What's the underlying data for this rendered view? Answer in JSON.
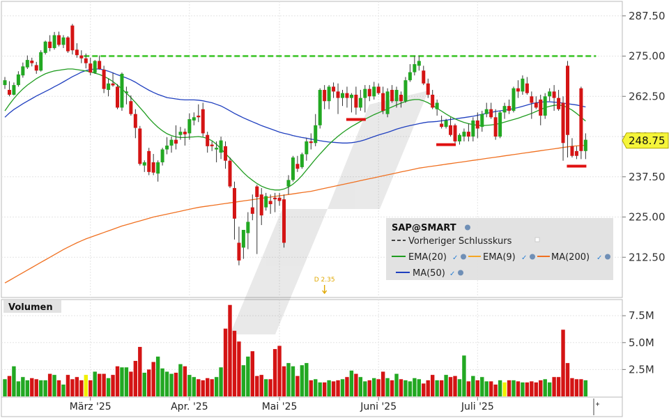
{
  "chart_data": {
    "type": "candlestick",
    "price_axis": {
      "ylim": [
        200,
        292
      ],
      "ticks": [
        "287.50",
        "275.00",
        "262.50",
        "250.00",
        "237.50",
        "225.00",
        "212.50"
      ],
      "tick_values": [
        287.5,
        275,
        262.5,
        250,
        237.5,
        225,
        212.5
      ]
    },
    "volume_axis": {
      "title": "Volumen",
      "ylim": [
        0,
        9
      ],
      "ticks": [
        "7.5M",
        "5.0M",
        "2.5M"
      ],
      "tick_values": [
        7.5,
        5.0,
        2.5
      ]
    },
    "x_labels": [
      {
        "label": "März '25",
        "index": 19
      },
      {
        "label": "Apr. '25",
        "index": 41
      },
      {
        "label": "Mai '25",
        "index": 61
      },
      {
        "label": "Juni '25",
        "index": 83
      },
      {
        "label": "Juli '25",
        "index": 105
      }
    ],
    "last_price": "248.75",
    "last_price_color": "#f5f53a",
    "previous_close": 275.0,
    "dividend_marker": {
      "label": "D 2.35",
      "index": 71
    },
    "legend": {
      "symbol": "SAP@SMART",
      "items": [
        {
          "name": "Vorheriger Schlusskurs",
          "color": "#444444",
          "style": "dashed"
        },
        {
          "name": "EMA(20)",
          "color": "#1f9c1f"
        },
        {
          "name": "EMA(9)",
          "color": "#f5a623"
        },
        {
          "name": "MA(200)",
          "color": "#f07020"
        },
        {
          "name": "MA(50)",
          "color": "#1f3fbf"
        }
      ]
    },
    "colors": {
      "up": "#22a822",
      "down": "#d41414",
      "neutral": "#f0f000",
      "ma50": "#1f3fbf",
      "ema20": "#1f9c1f",
      "ma200": "#f07020",
      "prev_close": "#55cc44",
      "support": "#e01010"
    },
    "support_marks": [
      {
        "index": 78,
        "value": 255.3
      },
      {
        "index": 98,
        "value": 247.5
      },
      {
        "index": 127,
        "value": 240.8
      }
    ],
    "candles": [
      [
        266.0,
        268.5,
        264.8,
        267.5
      ],
      [
        264.5,
        267.2,
        262.5,
        263.0
      ],
      [
        263.0,
        266.8,
        262.8,
        266.0
      ],
      [
        266.0,
        270.3,
        265.5,
        269.3
      ],
      [
        269.0,
        273.0,
        268.3,
        271.8
      ],
      [
        271.5,
        275.2,
        271.0,
        273.8
      ],
      [
        273.6,
        274.5,
        271.8,
        272.8
      ],
      [
        272.2,
        273.2,
        269.5,
        270.5
      ],
      [
        270.5,
        276.8,
        270.2,
        276.2
      ],
      [
        276.0,
        279.8,
        275.5,
        279.5
      ],
      [
        279.5,
        281.5,
        276.5,
        277.5
      ],
      [
        277.5,
        282.5,
        277.0,
        281.5
      ],
      [
        281.5,
        282.6,
        278.0,
        278.5
      ],
      [
        278.5,
        281.5,
        277.5,
        280.8
      ],
      [
        280.8,
        281.2,
        276.0,
        276.5
      ],
      [
        284.5,
        285.0,
        275.5,
        276.8
      ],
      [
        277.0,
        279.0,
        274.5,
        275.3
      ],
      [
        275.2,
        276.8,
        272.8,
        274.3
      ],
      [
        274.3,
        275.8,
        271.2,
        272.8
      ],
      [
        272.7,
        274.5,
        269.0,
        269.9
      ],
      [
        269.8,
        273.8,
        269.5,
        273.5
      ],
      [
        273.5,
        275.2,
        270.8,
        271.0
      ],
      [
        270.8,
        272.0,
        263.5,
        264.8
      ],
      [
        264.5,
        268.0,
        262.5,
        266.5
      ],
      [
        266.5,
        269.8,
        265.5,
        265.9
      ],
      [
        265.5,
        266.3,
        258.5,
        259.0
      ],
      [
        259.0,
        269.9,
        258.0,
        269.5
      ],
      [
        263.5,
        265.5,
        260.0,
        264.0
      ],
      [
        261.0,
        262.8,
        256.5,
        257.0
      ],
      [
        257.0,
        258.5,
        249.5,
        252.7
      ],
      [
        252.5,
        253.3,
        241.0,
        241.5
      ],
      [
        241.0,
        242.6,
        239.0,
        242.0
      ],
      [
        245.5,
        246.5,
        238.0,
        239.0
      ],
      [
        242.0,
        244.6,
        238.0,
        238.8
      ],
      [
        238.5,
        242.6,
        236.0,
        242.0
      ],
      [
        242.0,
        246.5,
        241.0,
        246.0
      ],
      [
        246.0,
        249.8,
        244.5,
        247.2
      ],
      [
        247.2,
        250.0,
        245.0,
        249.0
      ],
      [
        249.0,
        253.5,
        246.0,
        247.8
      ],
      [
        250.5,
        253.0,
        249.0,
        251.5
      ],
      [
        251.5,
        252.5,
        247.2,
        250.7
      ],
      [
        251.0,
        257.2,
        249.0,
        255.4
      ],
      [
        255.0,
        257.5,
        253.5,
        256.0
      ],
      [
        256.5,
        260.0,
        254.5,
        256.0
      ],
      [
        258.5,
        260.5,
        250.0,
        251.0
      ],
      [
        250.5,
        251.5,
        245.0,
        247.0
      ],
      [
        247.5,
        248.5,
        245.5,
        247.0
      ],
      [
        246.0,
        248.5,
        242.0,
        246.5
      ],
      [
        245.0,
        250.0,
        243.0,
        248.8
      ],
      [
        247.0,
        248.5,
        240.0,
        242.5
      ],
      [
        242.5,
        243.5,
        234.0,
        234.5
      ],
      [
        234.0,
        236.0,
        218.0,
        224.5
      ],
      [
        217.0,
        222.0,
        210.0,
        211.5
      ],
      [
        215.5,
        221.0,
        212.0,
        221.0
      ],
      [
        220.0,
        226.5,
        215.0,
        223.5
      ],
      [
        228.0,
        232.0,
        224.0,
        226.0
      ],
      [
        234.5,
        235.0,
        213.5,
        231.2
      ],
      [
        232.0,
        234.0,
        222.5,
        225.5
      ],
      [
        228.0,
        232.5,
        227.0,
        231.5
      ],
      [
        230.0,
        232.0,
        226.0,
        229.0
      ],
      [
        231.0,
        232.5,
        226.5,
        230.5
      ],
      [
        231.0,
        232.5,
        228.5,
        230.0
      ],
      [
        230.5,
        232.0,
        215.5,
        217.0
      ],
      [
        234.5,
        238.0,
        232.0,
        236.5
      ],
      [
        236.5,
        244.0,
        236.0,
        243.5
      ],
      [
        241.5,
        244.0,
        239.0,
        240.0
      ],
      [
        240.5,
        245.0,
        240.0,
        244.5
      ],
      [
        244.5,
        249.5,
        242.5,
        248.5
      ],
      [
        248.5,
        251.0,
        246.0,
        248.0
      ],
      [
        248.0,
        257.0,
        247.0,
        253.5
      ],
      [
        253.5,
        265.0,
        252.5,
        264.5
      ],
      [
        264.5,
        266.0,
        258.5,
        261.0
      ],
      [
        261.0,
        266.0,
        258.5,
        265.5
      ],
      [
        265.5,
        266.8,
        262.0,
        264.0
      ],
      [
        264.0,
        266.5,
        257.0,
        262.0
      ],
      [
        262.0,
        264.5,
        259.5,
        263.5
      ],
      [
        263.5,
        265.5,
        259.0,
        262.0
      ],
      [
        262.0,
        263.5,
        257.5,
        263.0
      ],
      [
        263.0,
        265.5,
        256.8,
        259.0
      ],
      [
        259.0,
        264.5,
        258.0,
        262.0
      ],
      [
        262.0,
        266.0,
        257.5,
        264.8
      ],
      [
        264.8,
        266.0,
        261.0,
        262.5
      ],
      [
        262.5,
        267.0,
        261.5,
        265.5
      ],
      [
        265.5,
        266.5,
        263.0,
        263.5
      ],
      [
        263.5,
        265.5,
        257.0,
        258.0
      ],
      [
        257.0,
        265.0,
        256.0,
        264.0
      ],
      [
        264.5,
        266.0,
        260.5,
        261.0
      ],
      [
        261.0,
        265.5,
        259.0,
        264.5
      ],
      [
        263.0,
        264.0,
        259.0,
        261.0
      ],
      [
        261.0,
        268.5,
        260.5,
        267.5
      ],
      [
        267.5,
        272.5,
        267.0,
        270.0
      ],
      [
        270.0,
        275.0,
        269.0,
        272.5
      ],
      [
        272.0,
        275.0,
        270.5,
        273.5
      ],
      [
        270.5,
        272.0,
        266.0,
        266.5
      ],
      [
        266.5,
        268.0,
        262.0,
        263.0
      ],
      [
        263.0,
        264.5,
        258.5,
        259.0
      ],
      [
        258.5,
        261.5,
        256.5,
        260.5
      ],
      [
        254.0,
        256.5,
        252.5,
        253.0
      ],
      [
        253.0,
        255.5,
        252.5,
        255.0
      ],
      [
        253.5,
        256.0,
        250.0,
        250.5
      ],
      [
        253.5,
        254.0,
        248.0,
        248.5
      ],
      [
        248.5,
        251.0,
        247.5,
        250.5
      ],
      [
        250.0,
        252.5,
        248.5,
        251.5
      ],
      [
        251.5,
        254.0,
        248.5,
        250.0
      ],
      [
        250.0,
        256.0,
        248.5,
        255.0
      ],
      [
        255.0,
        257.5,
        249.5,
        252.5
      ],
      [
        253.0,
        258.0,
        251.5,
        257.0
      ],
      [
        257.0,
        260.5,
        256.0,
        258.5
      ],
      [
        258.5,
        260.5,
        255.5,
        256.0
      ],
      [
        256.0,
        258.5,
        249.0,
        250.0
      ],
      [
        250.0,
        258.0,
        249.5,
        257.5
      ],
      [
        257.5,
        260.5,
        255.5,
        259.5
      ],
      [
        259.5,
        261.5,
        257.0,
        258.0
      ],
      [
        258.0,
        265.5,
        257.5,
        265.0
      ],
      [
        265.0,
        267.5,
        262.0,
        264.0
      ],
      [
        264.0,
        269.0,
        263.0,
        268.0
      ],
      [
        266.5,
        268.5,
        263.0,
        263.5
      ],
      [
        262.5,
        264.0,
        255.5,
        260.5
      ],
      [
        260.5,
        262.5,
        258.5,
        259.0
      ],
      [
        261.5,
        263.0,
        253.5,
        256.5
      ],
      [
        256.5,
        263.5,
        255.5,
        262.5
      ],
      [
        262.5,
        265.0,
        261.0,
        264.0
      ],
      [
        264.0,
        266.0,
        258.0,
        262.0
      ],
      [
        262.0,
        264.5,
        258.0,
        258.5
      ],
      [
        260.5,
        262.5,
        242.5,
        248.0
      ],
      [
        272.0,
        273.5,
        243.5,
        250.5
      ],
      [
        247.0,
        249.5,
        243.5,
        244.0
      ],
      [
        245.5,
        247.0,
        243.0,
        244.0
      ],
      [
        265.0,
        265.5,
        243.0,
        245.5
      ],
      [
        245.5,
        251.0,
        243.0,
        249.0
      ]
    ],
    "volumes": [
      1.6,
      1.9,
      2.8,
      1.4,
      1.8,
      1.5,
      1.7,
      1.6,
      1.5,
      1.5,
      2.1,
      2.0,
      1.5,
      1.1,
      2.0,
      1.6,
      1.8,
      1.5,
      2.0,
      1.5,
      2.3,
      2.1,
      2.1,
      1.7,
      2.0,
      2.8,
      2.7,
      2.7,
      2.3,
      3.3,
      4.6,
      2.2,
      2.5,
      3.2,
      3.7,
      2.6,
      2.3,
      2.1,
      2.2,
      3.0,
      2.8,
      2.0,
      1.8,
      1.6,
      1.5,
      1.7,
      1.6,
      1.8,
      2.7,
      6.3,
      8.5,
      6.1,
      5.1,
      2.9,
      3.7,
      4.2,
      1.9,
      2.0,
      1.6,
      1.6,
      4.4,
      4.7,
      2.8,
      3.1,
      2.8,
      1.9,
      2.9,
      3.1,
      1.5,
      1.6,
      1.3,
      1.3,
      1.5,
      1.4,
      1.5,
      1.6,
      1.8,
      2.4,
      2.1,
      1.8,
      1.4,
      1.5,
      1.7,
      1.6,
      2.3,
      1.7,
      1.5,
      2.1,
      1.6,
      1.5,
      1.4,
      1.7,
      1.6,
      1.2,
      1.5,
      2.0,
      1.5,
      1.5,
      2.0,
      1.8,
      1.9,
      1.6,
      3.8,
      1.4,
      1.9,
      1.5,
      1.8,
      1.4,
      1.4,
      1.1,
      1.5,
      1.3,
      1.5,
      1.5,
      1.4,
      1.3,
      1.3,
      1.4,
      1.3,
      1.5,
      1.6,
      1.3,
      1.8,
      1.8,
      6.2,
      3.1,
      1.7,
      1.6,
      1.6,
      1.5
    ],
    "volume_highlight_indices": [
      18,
      111
    ],
    "ma50": [
      256.0,
      257.3,
      258.4,
      259.3,
      260.2,
      261.0,
      261.8,
      262.6,
      263.3,
      264.0,
      264.7,
      265.5,
      266.2,
      267.0,
      267.8,
      268.6,
      269.3,
      270.0,
      270.5,
      270.8,
      271.0,
      271.0,
      270.7,
      270.3,
      269.8,
      269.2,
      268.7,
      268.2,
      267.6,
      266.9,
      266.0,
      265.2,
      264.4,
      263.7,
      263.1,
      262.6,
      262.1,
      261.9,
      261.7,
      261.5,
      261.4,
      261.4,
      261.4,
      261.3,
      261.1,
      260.8,
      260.5,
      260.0,
      259.5,
      258.8,
      258.0,
      257.2,
      256.5,
      255.8,
      255.2,
      254.6,
      254.0,
      253.4,
      252.9,
      252.4,
      251.9,
      251.4,
      251.0,
      250.7,
      250.3,
      250.0,
      249.7,
      249.5,
      249.2,
      249.0,
      248.7,
      248.5,
      248.3,
      248.2,
      248.1,
      248.0,
      248.0,
      248.1,
      248.3,
      248.6,
      249.0,
      249.5,
      250.0,
      250.5,
      250.9,
      251.3,
      251.8,
      252.3,
      252.7,
      253.1,
      253.4,
      253.7,
      254.0,
      254.3,
      254.5,
      254.6,
      254.7,
      254.9,
      255.1,
      255.3,
      255.5,
      255.7,
      255.9,
      256.1,
      256.3,
      256.6,
      256.9,
      257.2,
      257.5,
      257.8,
      258.0,
      258.2,
      258.4,
      258.7,
      259.0,
      259.4,
      259.8,
      260.2,
      260.5,
      260.7,
      260.8,
      260.8,
      260.7,
      260.6,
      260.4,
      260.2,
      260.0,
      259.8,
      259.5,
      259.2
    ],
    "ema20": [
      258.0,
      260.0,
      261.8,
      263.4,
      264.8,
      266.0,
      267.0,
      268.0,
      268.8,
      269.5,
      270.0,
      270.4,
      270.6,
      270.8,
      271.0,
      271.0,
      270.8,
      270.6,
      270.4,
      270.1,
      269.7,
      269.3,
      268.7,
      268.0,
      267.1,
      266.0,
      264.8,
      263.5,
      262.1,
      260.6,
      259.0,
      257.4,
      255.7,
      254.2,
      252.9,
      251.8,
      250.9,
      250.3,
      249.9,
      249.7,
      249.7,
      249.8,
      249.9,
      250.0,
      249.8,
      249.4,
      248.7,
      247.6,
      246.2,
      244.7,
      243.3,
      241.8,
      240.3,
      238.8,
      237.5,
      236.4,
      235.4,
      234.6,
      234.0,
      233.6,
      233.4,
      233.4,
      233.7,
      234.3,
      235.2,
      236.4,
      237.9,
      239.6,
      241.3,
      243.0,
      244.6,
      246.1,
      247.6,
      248.9,
      250.1,
      251.2,
      252.2,
      253.1,
      253.9,
      254.7,
      255.4,
      256.1,
      256.8,
      257.4,
      258.0,
      258.6,
      259.2,
      259.8,
      260.4,
      260.9,
      261.3,
      261.5,
      261.5,
      261.1,
      260.5,
      259.7,
      258.8,
      257.9,
      257.0,
      256.2,
      255.5,
      254.9,
      254.4,
      254.0,
      253.7,
      253.5,
      253.4,
      253.5,
      253.6,
      253.8,
      254.1,
      254.5,
      254.9,
      255.3,
      255.7,
      256.2,
      256.7,
      257.2,
      257.8,
      258.4,
      259.0,
      259.4,
      259.7,
      259.8,
      259.6,
      259.0,
      258.2,
      257.2,
      256.0,
      254.8
    ],
    "ma200": [
      204.5,
      205.3,
      206.1,
      206.9,
      207.7,
      208.5,
      209.3,
      210.1,
      210.9,
      211.7,
      212.5,
      213.3,
      214.1,
      214.9,
      215.6,
      216.3,
      217.0,
      217.6,
      218.2,
      218.7,
      219.2,
      219.7,
      220.2,
      220.7,
      221.2,
      221.7,
      222.2,
      222.6,
      223.0,
      223.4,
      223.8,
      224.2,
      224.6,
      225.0,
      225.3,
      225.6,
      225.9,
      226.2,
      226.5,
      226.8,
      227.1,
      227.4,
      227.7,
      228.0,
      228.2,
      228.4,
      228.6,
      228.8,
      229.0,
      229.2,
      229.4,
      229.6,
      229.8,
      230.0,
      230.2,
      230.4,
      230.6,
      230.8,
      231.0,
      231.2,
      231.4,
      231.6,
      231.8,
      232.0,
      232.2,
      232.4,
      232.6,
      232.8,
      233.0,
      233.3,
      233.6,
      233.9,
      234.2,
      234.5,
      234.8,
      235.1,
      235.4,
      235.7,
      236.0,
      236.3,
      236.6,
      236.9,
      237.2,
      237.5,
      237.8,
      238.1,
      238.4,
      238.7,
      239.0,
      239.3,
      239.6,
      239.9,
      240.2,
      240.4,
      240.6,
      240.8,
      241.0,
      241.2,
      241.4,
      241.6,
      241.8,
      242.0,
      242.2,
      242.4,
      242.6,
      242.8,
      243.0,
      243.2,
      243.4,
      243.6,
      243.8,
      244.0,
      244.2,
      244.4,
      244.6,
      244.8,
      245.0,
      245.2,
      245.4,
      245.6,
      245.8,
      246.0,
      246.2,
      246.4,
      246.6,
      246.8,
      247.0,
      247.1,
      247.2,
      247.3
    ]
  }
}
